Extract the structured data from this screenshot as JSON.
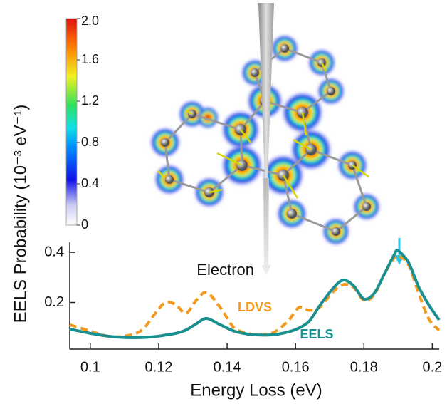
{
  "chart_data": {
    "type": "line",
    "x_label": "Energy Loss (eV)",
    "y_label": "EELS Probability (10⁻³ eV⁻¹)",
    "xlim": [
      0.094,
      0.202
    ],
    "ylim": [
      0.014,
      0.44
    ],
    "xticks": [
      0.1,
      0.12,
      0.14,
      0.16,
      0.18,
      0.2
    ],
    "yticks": [
      0.2,
      0.4
    ],
    "x": [
      0.094,
      0.1,
      0.105,
      0.11,
      0.115,
      0.119,
      0.122,
      0.125,
      0.128,
      0.131,
      0.134,
      0.138,
      0.142,
      0.146,
      0.15,
      0.154,
      0.158,
      0.161,
      0.164,
      0.167,
      0.171,
      0.174,
      0.177,
      0.18,
      0.183,
      0.186,
      0.189,
      0.19,
      0.193,
      0.196,
      0.199,
      0.202
    ],
    "series": [
      {
        "name": "EELS",
        "color": "#1a8f8f",
        "dashed": false,
        "values": [
          0.094,
          0.077,
          0.066,
          0.06,
          0.06,
          0.064,
          0.07,
          0.077,
          0.09,
          0.115,
          0.136,
          0.111,
          0.086,
          0.074,
          0.07,
          0.072,
          0.083,
          0.098,
          0.125,
          0.186,
          0.257,
          0.289,
          0.266,
          0.214,
          0.237,
          0.314,
          0.394,
          0.406,
          0.36,
          0.262,
          0.19,
          0.13
        ]
      },
      {
        "name": "LDVS",
        "color": "#f39a1e",
        "dashed": true,
        "values": [
          0.111,
          0.086,
          0.066,
          0.066,
          0.089,
          0.157,
          0.2,
          0.191,
          0.157,
          0.209,
          0.24,
          0.18,
          0.1,
          0.077,
          0.071,
          0.083,
          0.129,
          0.18,
          0.169,
          0.18,
          0.243,
          0.271,
          0.26,
          0.209,
          0.231,
          0.314,
          0.38,
          0.386,
          0.351,
          0.237,
          0.134,
          0.089
        ]
      }
    ],
    "annotations": [
      "Electron"
    ],
    "colorbar": {
      "lim": [
        0,
        2
      ],
      "ticks": [
        0,
        {
          "value": 0.4,
          "label": "0.4"
        },
        {
          "value": 0.8,
          "label": "0.8"
        },
        {
          "value": 1.2,
          "label": "1.2"
        },
        {
          "value": 1.6,
          "label": "1.6"
        },
        {
          "value": 2,
          "label": "2.0"
        }
      ]
    }
  }
}
